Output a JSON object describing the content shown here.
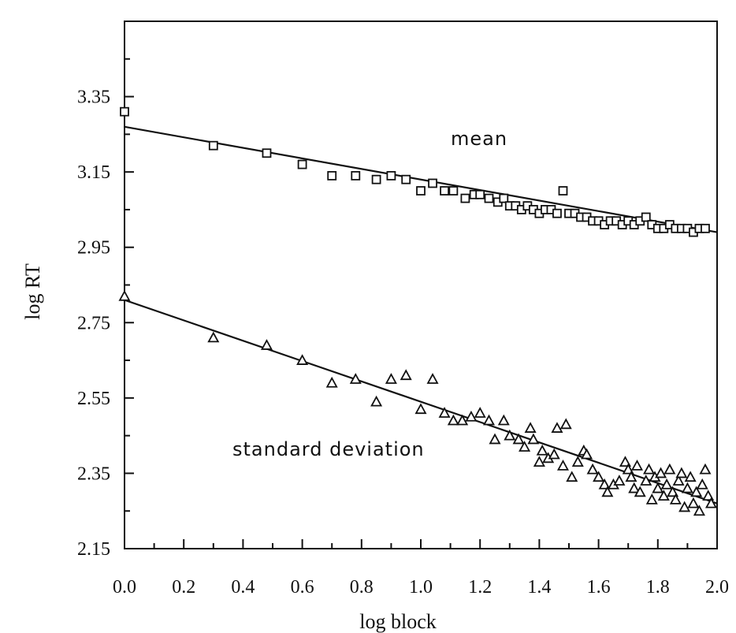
{
  "chart_data": {
    "type": "scatter",
    "xlabel": "log block",
    "ylabel": "log RT",
    "xlim": [
      0.0,
      2.0
    ],
    "ylim": [
      2.15,
      3.55
    ],
    "x_ticks": [
      "0.0",
      "0.2",
      "0.4",
      "0.6",
      "0.8",
      "1.0",
      "1.2",
      "1.4",
      "1.6",
      "1.8",
      "2.0"
    ],
    "y_ticks": [
      "2.15",
      "2.35",
      "2.55",
      "2.75",
      "2.95",
      "3.15",
      "3.35"
    ],
    "annotations": [
      "mean",
      "standard deviation"
    ],
    "series": [
      {
        "name": "mean",
        "marker": "square",
        "fit_line": {
          "intercept": 3.27,
          "slope": -0.14
        },
        "points": [
          [
            0.0,
            3.31
          ],
          [
            0.3,
            3.22
          ],
          [
            0.48,
            3.2
          ],
          [
            0.6,
            3.17
          ],
          [
            0.7,
            3.14
          ],
          [
            0.78,
            3.14
          ],
          [
            0.85,
            3.13
          ],
          [
            0.9,
            3.14
          ],
          [
            0.95,
            3.13
          ],
          [
            1.0,
            3.1
          ],
          [
            1.04,
            3.12
          ],
          [
            1.08,
            3.1
          ],
          [
            1.11,
            3.1
          ],
          [
            1.15,
            3.08
          ],
          [
            1.18,
            3.09
          ],
          [
            1.2,
            3.09
          ],
          [
            1.23,
            3.08
          ],
          [
            1.26,
            3.07
          ],
          [
            1.28,
            3.08
          ],
          [
            1.3,
            3.06
          ],
          [
            1.32,
            3.06
          ],
          [
            1.34,
            3.05
          ],
          [
            1.36,
            3.06
          ],
          [
            1.38,
            3.05
          ],
          [
            1.4,
            3.04
          ],
          [
            1.42,
            3.05
          ],
          [
            1.44,
            3.05
          ],
          [
            1.46,
            3.04
          ],
          [
            1.48,
            3.1
          ],
          [
            1.5,
            3.04
          ],
          [
            1.52,
            3.04
          ],
          [
            1.54,
            3.03
          ],
          [
            1.56,
            3.03
          ],
          [
            1.58,
            3.02
          ],
          [
            1.6,
            3.02
          ],
          [
            1.62,
            3.01
          ],
          [
            1.64,
            3.02
          ],
          [
            1.66,
            3.02
          ],
          [
            1.68,
            3.01
          ],
          [
            1.7,
            3.02
          ],
          [
            1.72,
            3.01
          ],
          [
            1.74,
            3.02
          ],
          [
            1.76,
            3.03
          ],
          [
            1.78,
            3.01
          ],
          [
            1.8,
            3.0
          ],
          [
            1.82,
            3.0
          ],
          [
            1.84,
            3.01
          ],
          [
            1.86,
            3.0
          ],
          [
            1.88,
            3.0
          ],
          [
            1.9,
            3.0
          ],
          [
            1.92,
            2.99
          ],
          [
            1.94,
            3.0
          ],
          [
            1.96,
            3.0
          ]
        ]
      },
      {
        "name": "standard deviation",
        "marker": "triangle",
        "fit_line": {
          "intercept": 2.81,
          "slope": -0.27
        },
        "points": [
          [
            0.0,
            2.82
          ],
          [
            0.3,
            2.71
          ],
          [
            0.48,
            2.69
          ],
          [
            0.6,
            2.65
          ],
          [
            0.7,
            2.59
          ],
          [
            0.78,
            2.6
          ],
          [
            0.85,
            2.54
          ],
          [
            0.9,
            2.6
          ],
          [
            0.95,
            2.61
          ],
          [
            1.0,
            2.52
          ],
          [
            1.04,
            2.6
          ],
          [
            1.08,
            2.51
          ],
          [
            1.11,
            2.49
          ],
          [
            1.14,
            2.49
          ],
          [
            1.17,
            2.5
          ],
          [
            1.2,
            2.51
          ],
          [
            1.23,
            2.49
          ],
          [
            1.25,
            2.44
          ],
          [
            1.28,
            2.49
          ],
          [
            1.3,
            2.45
          ],
          [
            1.33,
            2.44
          ],
          [
            1.35,
            2.42
          ],
          [
            1.37,
            2.47
          ],
          [
            1.38,
            2.44
          ],
          [
            1.4,
            2.38
          ],
          [
            1.41,
            2.41
          ],
          [
            1.43,
            2.39
          ],
          [
            1.45,
            2.4
          ],
          [
            1.46,
            2.47
          ],
          [
            1.48,
            2.37
          ],
          [
            1.49,
            2.48
          ],
          [
            1.51,
            2.34
          ],
          [
            1.53,
            2.38
          ],
          [
            1.55,
            2.41
          ],
          [
            1.56,
            2.4
          ],
          [
            1.58,
            2.36
          ],
          [
            1.6,
            2.34
          ],
          [
            1.62,
            2.32
          ],
          [
            1.63,
            2.3
          ],
          [
            1.65,
            2.32
          ],
          [
            1.67,
            2.33
          ],
          [
            1.69,
            2.38
          ],
          [
            1.7,
            2.36
          ],
          [
            1.71,
            2.34
          ],
          [
            1.72,
            2.31
          ],
          [
            1.73,
            2.37
          ],
          [
            1.74,
            2.3
          ],
          [
            1.76,
            2.33
          ],
          [
            1.77,
            2.36
          ],
          [
            1.78,
            2.28
          ],
          [
            1.79,
            2.34
          ],
          [
            1.8,
            2.31
          ],
          [
            1.81,
            2.35
          ],
          [
            1.82,
            2.29
          ],
          [
            1.83,
            2.32
          ],
          [
            1.84,
            2.36
          ],
          [
            1.85,
            2.3
          ],
          [
            1.86,
            2.28
          ],
          [
            1.87,
            2.33
          ],
          [
            1.88,
            2.35
          ],
          [
            1.89,
            2.26
          ],
          [
            1.9,
            2.31
          ],
          [
            1.91,
            2.34
          ],
          [
            1.92,
            2.27
          ],
          [
            1.93,
            2.3
          ],
          [
            1.94,
            2.25
          ],
          [
            1.95,
            2.32
          ],
          [
            1.96,
            2.36
          ],
          [
            1.97,
            2.29
          ],
          [
            1.98,
            2.27
          ]
        ]
      }
    ]
  }
}
